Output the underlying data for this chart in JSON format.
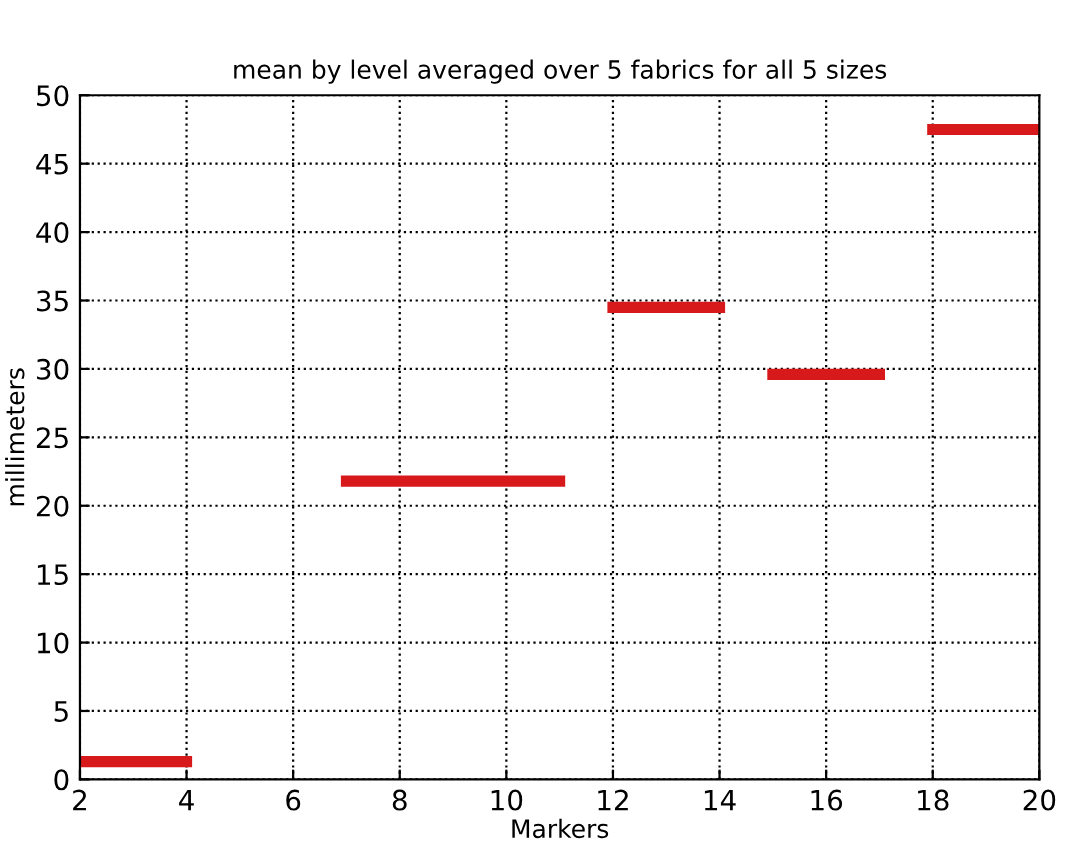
{
  "chart_data": {
    "type": "line",
    "title": "mean by level averaged over 5 fabrics for all 5 sizes",
    "xlabel": "Markers",
    "ylabel": "millimeters",
    "series": [
      {
        "color": "#d7191c",
        "x": [
          2,
          4
        ],
        "values": [
          1.3,
          1.3
        ]
      },
      {
        "color": "#d7191c",
        "x": [
          7,
          11
        ],
        "values": [
          21.8,
          21.8
        ]
      },
      {
        "color": "#d7191c",
        "x": [
          12,
          14
        ],
        "values": [
          34.5,
          34.5
        ]
      },
      {
        "color": "#d7191c",
        "x": [
          15,
          17
        ],
        "values": [
          29.6,
          29.6
        ]
      },
      {
        "color": "#d7191c",
        "x": [
          18,
          20
        ],
        "values": [
          47.5,
          47.5
        ]
      }
    ],
    "xlim": [
      2,
      20
    ],
    "xticks": [
      2,
      4,
      6,
      8,
      10,
      12,
      14,
      16,
      18,
      20
    ],
    "ylim": [
      0,
      50
    ],
    "yticks": [
      0,
      5,
      10,
      15,
      20,
      25,
      30,
      35,
      40,
      45,
      50
    ],
    "grid": true,
    "marker": "none",
    "line_style": "solid"
  }
}
